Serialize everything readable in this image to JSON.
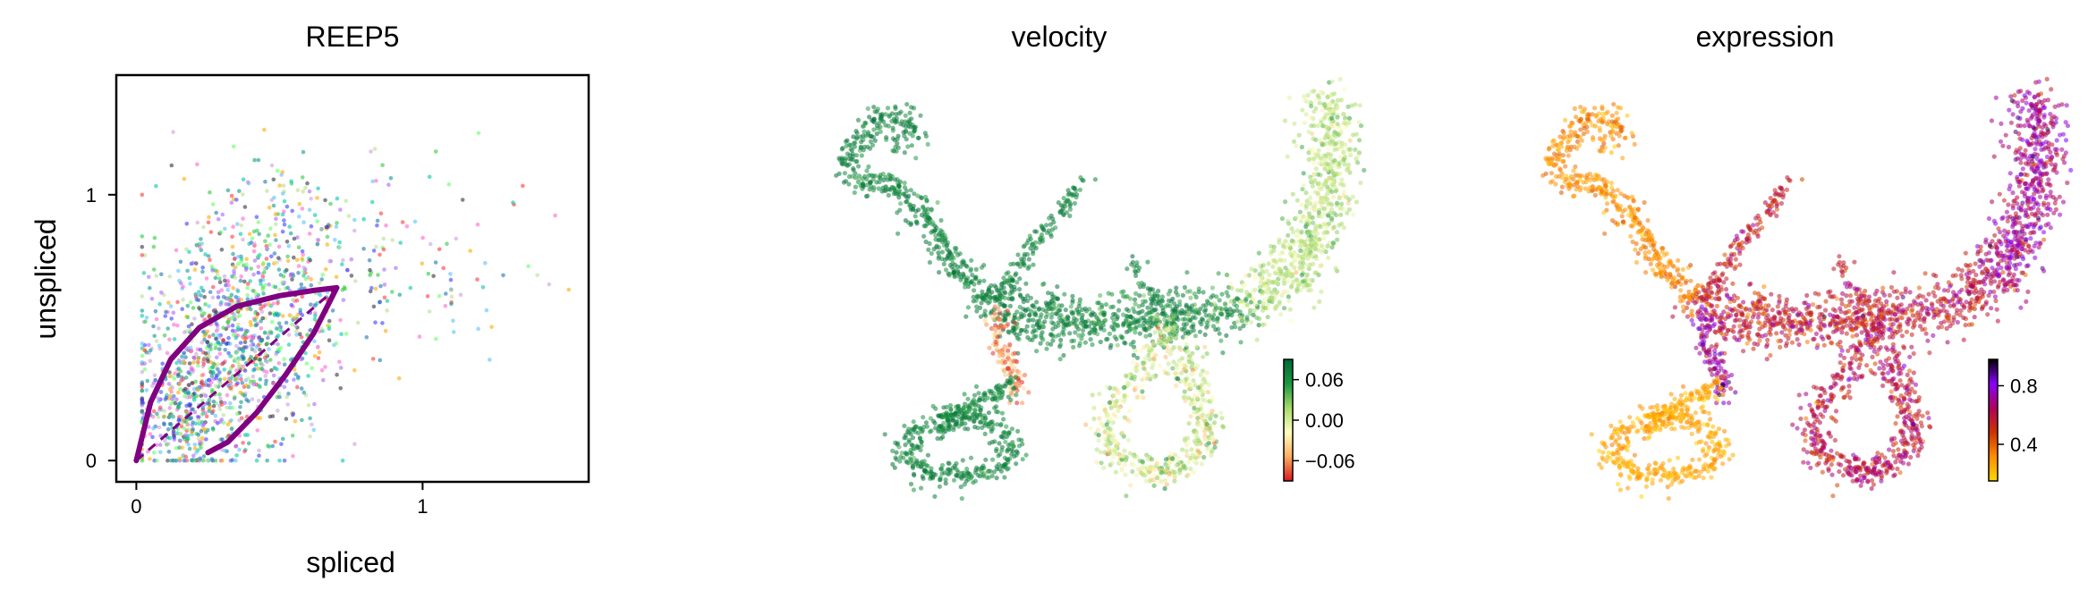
{
  "chart_data": [
    {
      "type": "scatter",
      "title": "REEP5",
      "xlabel": "spliced",
      "ylabel": "unspliced",
      "xlim": [
        -0.07,
        1.58
      ],
      "ylim": [
        -0.08,
        1.45
      ],
      "xticks": [
        0,
        1
      ],
      "yticks": [
        0,
        1
      ],
      "tick_labels_x": [
        "0",
        "1"
      ],
      "tick_labels_y": [
        "0",
        "1"
      ],
      "grid": false,
      "legend": "none",
      "point_colors": [
        "#1f77b4",
        "#ff3b3b",
        "#2ecc40",
        "#3d3dff",
        "#ff66cc",
        "#00c9a7",
        "#59c2ff",
        "#333344",
        "#b9e08a",
        "#aa66ff",
        "#ffaa00",
        "#66ff66",
        "#0f9b8e",
        "#c9a0dc"
      ],
      "clusters": [
        {
          "center": [
            0.4,
            0.55
          ],
          "spread": [
            0.18,
            0.22
          ],
          "count": 520
        },
        {
          "center": [
            0.3,
            0.4
          ],
          "spread": [
            0.15,
            0.18
          ],
          "count": 420
        },
        {
          "center": [
            0.18,
            0.18
          ],
          "spread": [
            0.1,
            0.12
          ],
          "count": 360
        },
        {
          "center": [
            0.95,
            0.72
          ],
          "spread": [
            0.25,
            0.18
          ],
          "count": 110
        },
        {
          "center": [
            0.55,
            0.85
          ],
          "spread": [
            0.2,
            0.18
          ],
          "count": 120
        }
      ],
      "curve_color": "#800080",
      "curve_top": {
        "x": [
          0.0,
          0.05,
          0.12,
          0.22,
          0.35,
          0.5,
          0.62,
          0.7
        ],
        "y": [
          0.0,
          0.22,
          0.38,
          0.5,
          0.58,
          0.62,
          0.64,
          0.65
        ]
      },
      "curve_bottom": {
        "x": [
          0.7,
          0.62,
          0.52,
          0.42,
          0.32,
          0.25
        ],
        "y": [
          0.65,
          0.48,
          0.32,
          0.18,
          0.07,
          0.03
        ]
      },
      "curve_dash": {
        "x": [
          0.0,
          0.7
        ],
        "y": [
          0.0,
          0.65
        ]
      }
    },
    {
      "type": "scatter",
      "title": "velocity",
      "colorbar": {
        "ticks": [
          "0.06",
          "0.00",
          "−0.06"
        ],
        "values": [
          0.06,
          0.0,
          -0.06
        ],
        "range": [
          -0.09,
          0.09
        ],
        "colors": [
          "#d7191c",
          "#fdae61",
          "#ffffbf",
          "#a6d96a",
          "#1a9641",
          "#006837"
        ]
      },
      "cmap_name": "RdYlGn"
    },
    {
      "type": "scatter",
      "title": "expression",
      "colorbar": {
        "ticks": [
          "0.8",
          "0.4"
        ],
        "values": [
          0.8,
          0.4
        ],
        "range": [
          0.15,
          0.98
        ],
        "colors": [
          "#ffd700",
          "#ff8c00",
          "#cc3300",
          "#b0005a",
          "#8a00ff",
          "#000000"
        ]
      },
      "cmap_name": "gnuplot"
    }
  ]
}
